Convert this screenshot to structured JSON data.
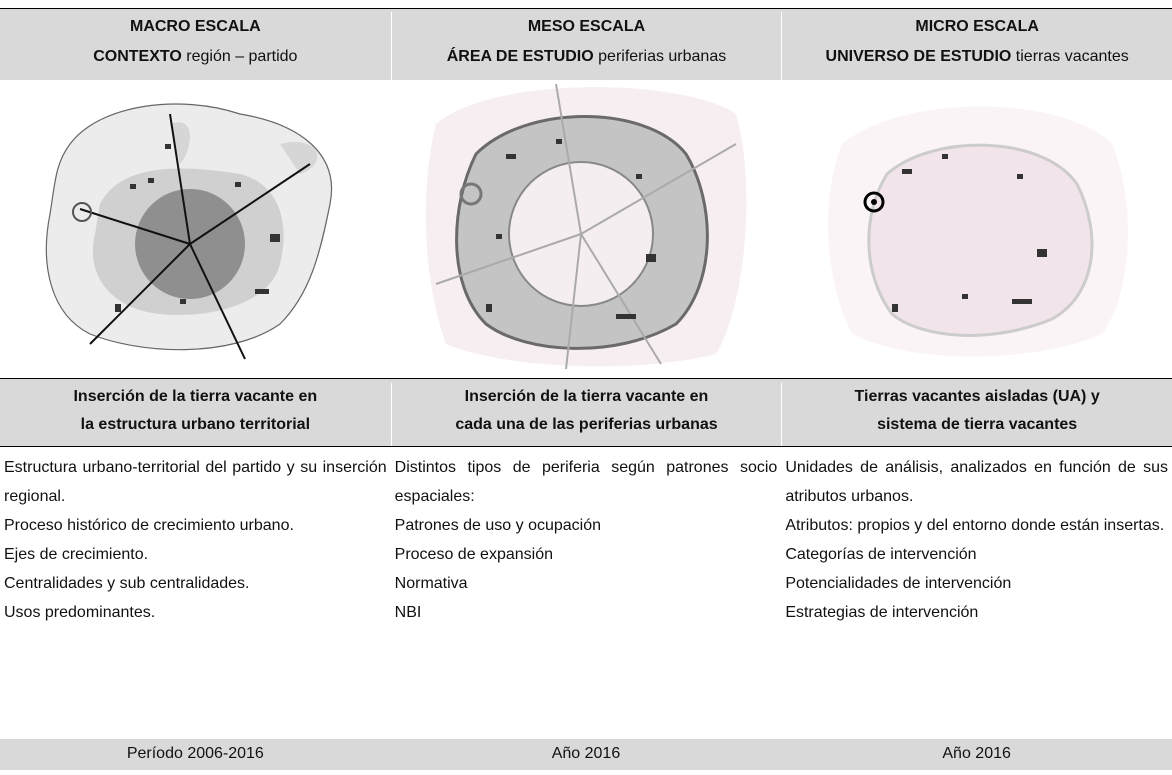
{
  "table": {
    "header": [
      {
        "scale": "MACRO ESCALA",
        "focus": "CONTEXTO",
        "focus_detail": "región – partido"
      },
      {
        "scale": "MESO ESCALA",
        "focus": "ÁREA DE ESTUDIO",
        "focus_detail": "periferias urbanas"
      },
      {
        "scale": "MICRO ESCALA",
        "focus": "UNIVERSO DE ESTUDIO",
        "focus_detail": "tierras vacantes"
      }
    ],
    "subheader": [
      [
        "Inserción de la tierra vacante en",
        "la estructura urbano territorial"
      ],
      [
        "Inserción de la tierra vacante en",
        "cada una de las periferias urbanas"
      ],
      [
        "Tierras vacantes aisladas (UA) y",
        "sistema de tierra vacantes"
      ]
    ],
    "body": [
      [
        "Estructura urbano-territorial del partido y su inserción regional.",
        "Proceso histórico de crecimiento urbano.",
        "Ejes de crecimiento.",
        "Centralidades y sub centralidades.",
        "Usos predominantes."
      ],
      [
        "Distintos tipos de periferia según patrones socio espaciales:",
        "Patrones de uso y ocupación",
        "Proceso de expansión",
        "Normativa",
        "NBI"
      ],
      [
        "Unidades de análisis, analizados en función de sus atributos urbanos.",
        "Atributos: propios y del entorno donde están insertas.",
        "Categorías de intervención",
        "Potencialidades de intervención",
        "Estrategias de intervención"
      ]
    ],
    "footer": [
      "Período 2006-2016",
      "Año 2016",
      "Año 2016"
    ]
  }
}
